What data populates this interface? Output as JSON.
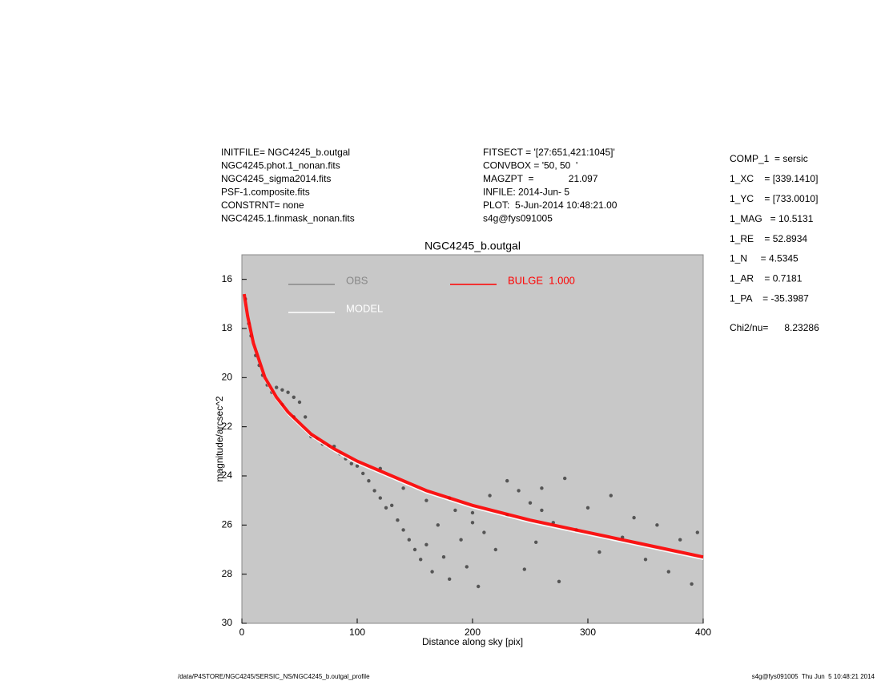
{
  "chart_data": {
    "type": "scatter",
    "title": "NGC4245_b.outgal",
    "x_label": "Distance along sky [pix]",
    "y_label": "magnitude/arcsec^2",
    "xlim": [
      0,
      400
    ],
    "xticks": [
      0,
      100,
      200,
      300,
      400
    ],
    "ylim": [
      30,
      15
    ],
    "yticks": [
      16,
      18,
      20,
      22,
      24,
      26,
      28,
      30
    ],
    "background": "#c8c8c8",
    "series": [
      {
        "name": "OBS",
        "color": "#555555",
        "style": "points",
        "x": [
          3,
          6,
          8,
          12,
          15,
          18,
          22,
          26,
          30,
          35,
          40,
          45,
          50,
          55,
          35,
          45,
          60,
          65,
          70,
          75,
          80,
          85,
          90,
          95,
          100,
          105,
          110,
          115,
          120,
          125,
          130,
          135,
          140,
          145,
          150,
          155,
          160,
          165,
          170,
          175,
          180,
          185,
          190,
          195,
          200,
          205,
          210,
          215,
          220,
          230,
          240,
          245,
          250,
          255,
          260,
          270,
          275,
          280,
          290,
          300,
          310,
          320,
          330,
          340,
          350,
          360,
          370,
          380,
          390,
          395,
          120,
          140,
          160,
          180,
          200,
          230,
          260
        ],
        "values": [
          16.8,
          17.8,
          18.3,
          19.1,
          19.5,
          19.9,
          20.3,
          20.6,
          20.4,
          20.5,
          20.6,
          20.8,
          21.0,
          21.6,
          21.1,
          21.6,
          22.4,
          22.5,
          22.7,
          22.8,
          22.8,
          23.1,
          23.3,
          23.5,
          23.6,
          23.9,
          24.2,
          24.6,
          24.9,
          25.3,
          25.2,
          25.8,
          26.2,
          26.6,
          27.0,
          27.4,
          26.8,
          27.9,
          26.0,
          27.3,
          28.2,
          25.4,
          26.6,
          27.7,
          25.9,
          28.5,
          26.3,
          24.8,
          27.0,
          25.6,
          24.6,
          27.8,
          25.1,
          26.7,
          24.5,
          25.9,
          28.3,
          24.1,
          26.2,
          25.3,
          27.1,
          24.8,
          26.5,
          25.7,
          27.4,
          26.0,
          27.9,
          26.6,
          28.4,
          26.3,
          23.7,
          24.5,
          25.0,
          24.9,
          25.5,
          24.2,
          25.4
        ]
      },
      {
        "name": "MODEL",
        "color": "#ffffff",
        "style": "line",
        "x": [
          2,
          5,
          10,
          20,
          30,
          40,
          60,
          80,
          100,
          130,
          160,
          200,
          250,
          300,
          350,
          400
        ],
        "values": [
          16.7,
          17.6,
          18.7,
          20.1,
          20.9,
          21.5,
          22.4,
          23.0,
          23.5,
          24.1,
          24.7,
          25.3,
          25.9,
          26.4,
          26.9,
          27.4
        ]
      },
      {
        "name": "BULGE  1.000",
        "color": "#ff0000",
        "style": "line",
        "x": [
          2,
          5,
          10,
          20,
          30,
          40,
          60,
          80,
          100,
          130,
          160,
          200,
          250,
          300,
          350,
          400
        ],
        "values": [
          16.6,
          17.5,
          18.6,
          20.0,
          20.8,
          21.4,
          22.3,
          22.9,
          23.4,
          24.0,
          24.6,
          25.2,
          25.8,
          26.3,
          26.8,
          27.3
        ]
      }
    ]
  },
  "info_left": [
    "INITFILE= NGC4245_b.outgal",
    "NGC4245.phot.1_nonan.fits",
    "NGC4245_sigma2014.fits",
    "PSF-1.composite.fits",
    "CONSTRNT= none",
    "NGC4245.1.finmask_nonan.fits"
  ],
  "info_middle": [
    "FITSECT = '[27:651,421:1045]'",
    "CONVBOX = '50, 50  '",
    "MAGZPT  =             21.097",
    "INFILE: 2014-Jun- 5",
    "PLOT:  5-Jun-2014 10:48:21.00",
    "s4g@fys091005"
  ],
  "params": [
    "COMP_1  = sersic",
    "1_XC    = [339.1410]",
    "1_YC    = [733.0010]",
    "1_MAG   = 10.5131",
    "1_RE    = 52.8934",
    "1_N     = 4.5345",
    "1_AR    = 0.7181",
    "1_PA    = -35.3987"
  ],
  "chi2": "Chi2/nu=      8.23286",
  "footer_left": "/data/P4STORE/NGC4245/SERSIC_NS/NGC4245_b.outgal_profile",
  "footer_right": "s4g@fys091005  Thu Jun  5 10:48:21 2014"
}
